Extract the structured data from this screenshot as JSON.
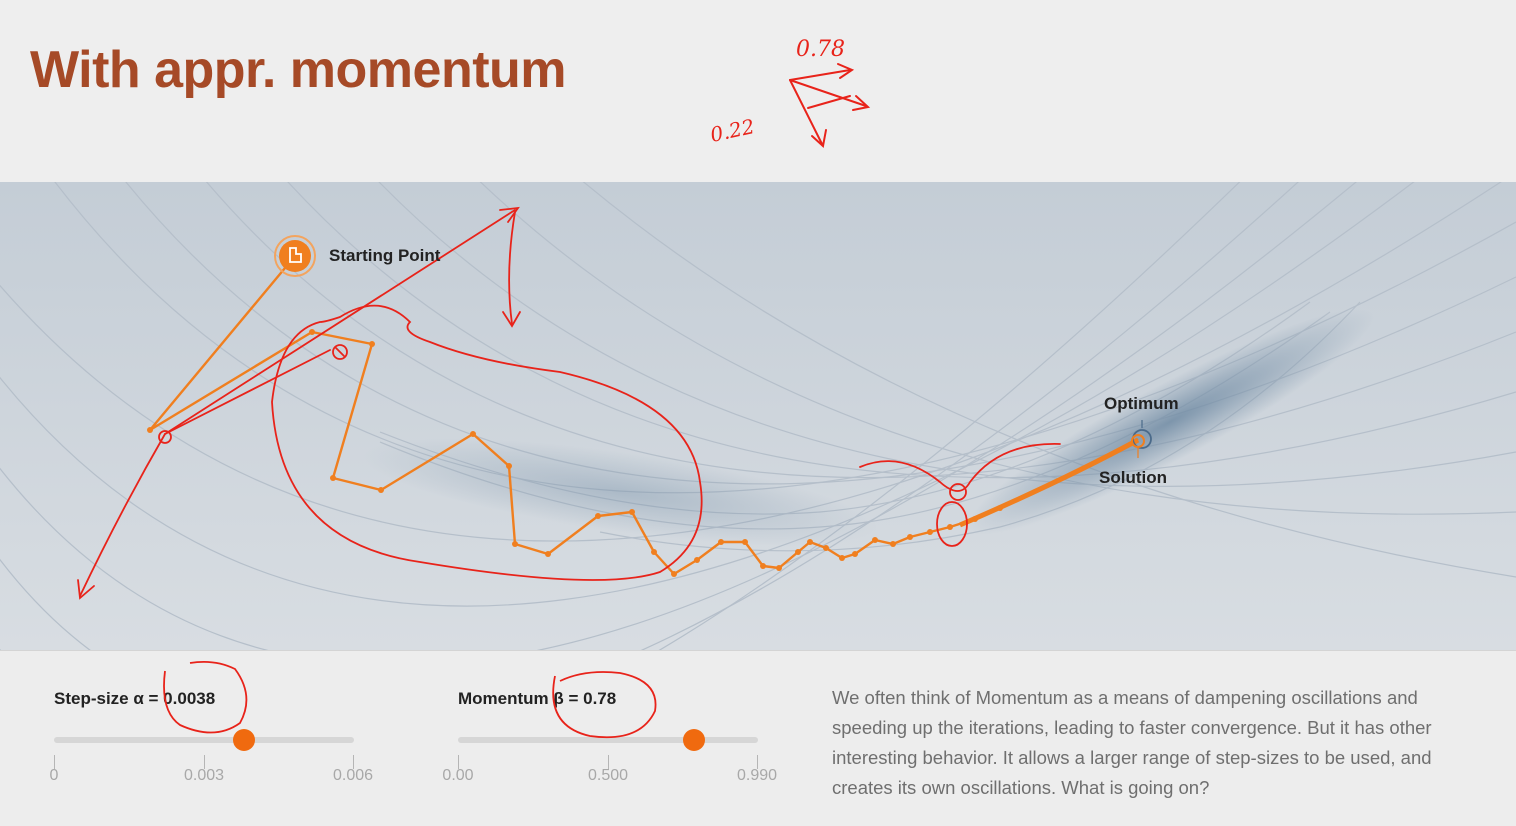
{
  "page": {
    "title": "With appr. momentum"
  },
  "annotations": {
    "label_top": "0.78",
    "label_left": "0.22"
  },
  "plot": {
    "labels": {
      "start": "Starting Point",
      "optimum": "Optimum",
      "solution": "Solution"
    },
    "colors": {
      "path": "#f07f1f",
      "ink": "#e8231a",
      "optimum_marker": "#4a6a8a"
    }
  },
  "controls": {
    "step_size": {
      "label": "Step-size α = 0.0038",
      "value": 0.0038,
      "min": 0,
      "max": 0.006,
      "ticks": [
        "0",
        "0.003",
        "0.006"
      ]
    },
    "momentum": {
      "label": "Momentum β = 0.78",
      "value": 0.78,
      "min": 0,
      "max": 0.99,
      "ticks": [
        "0.00",
        "0.500",
        "0.990"
      ]
    }
  },
  "description": "We often think of Momentum as a means of dampening oscillations and speeding up the iterations, leading to faster convergence. But it has other interesting behavior. It allows a larger range of step-sizes to be used, and creates its own oscillations. What is going on?"
}
